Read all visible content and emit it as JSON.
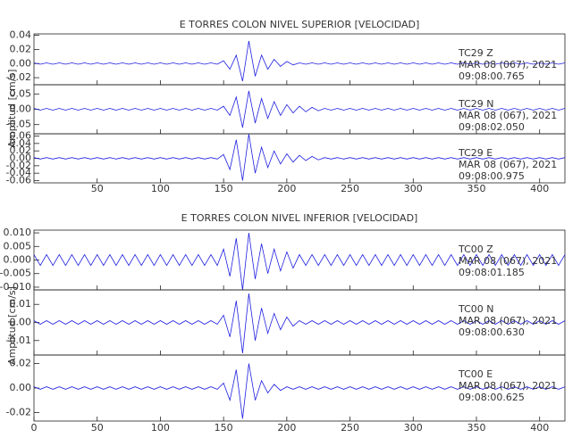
{
  "chart_data": [
    {
      "type": "line",
      "title": "E TORRES COLON NIVEL SUPERIOR [VELOCIDAD]",
      "ylabel": "Amplitud [cm/s]",
      "color": "#1f1fe0",
      "xlim": [
        0,
        420
      ],
      "xticks": [
        50,
        100,
        150,
        200,
        250,
        300,
        350,
        400
      ],
      "x": [
        0,
        5,
        10,
        15,
        20,
        25,
        30,
        35,
        40,
        45,
        50,
        55,
        60,
        65,
        70,
        75,
        80,
        85,
        90,
        95,
        100,
        105,
        110,
        115,
        120,
        125,
        130,
        135,
        140,
        145,
        150,
        155,
        160,
        165,
        170,
        175,
        180,
        185,
        190,
        195,
        200,
        205,
        210,
        215,
        220,
        225,
        230,
        235,
        240,
        245,
        250,
        255,
        260,
        265,
        270,
        275,
        280,
        285,
        290,
        295,
        300,
        305,
        310,
        315,
        320,
        325,
        330,
        335,
        340,
        345,
        350,
        355,
        360,
        365,
        370,
        375,
        380,
        385,
        390,
        395,
        400,
        405,
        410,
        415,
        420
      ],
      "panels": [
        {
          "station": "TC29   Z",
          "date": "MAR 08 (067), 2021",
          "time": "09:08:00.765",
          "ylim": [
            -0.03,
            0.042
          ],
          "yticks": [
            0.04,
            0.02,
            {
              "value": 0,
              "label": "0.00"
            },
            -0.02
          ],
          "values": [
            0.001,
            -0.001,
            0.001,
            -0.001,
            0.001,
            -0.001,
            0.001,
            -0.001,
            0.001,
            -0.001,
            0.001,
            -0.001,
            0.001,
            -0.001,
            0.001,
            -0.001,
            0.001,
            -0.001,
            0.001,
            -0.001,
            0.001,
            -0.001,
            0.001,
            -0.001,
            0.001,
            -0.001,
            0.001,
            -0.001,
            0.001,
            -0.001,
            0.004,
            -0.008,
            0.012,
            -0.025,
            0.032,
            -0.018,
            0.012,
            -0.008,
            0.006,
            -0.004,
            0.003,
            -0.002,
            0.001,
            -0.001,
            0.001,
            -0.001,
            0.001,
            -0.001,
            0.001,
            -0.001,
            0.001,
            -0.001,
            0.001,
            -0.001,
            0.001,
            -0.001,
            0.001,
            -0.001,
            0.001,
            -0.001,
            0.001,
            -0.001,
            0.001,
            -0.001,
            0.001,
            -0.001,
            0.001,
            -0.001,
            0.001,
            -0.001,
            0.001,
            -0.001,
            0.001,
            -0.001,
            0.001,
            -0.001,
            0.001,
            -0.001,
            0.001,
            -0.001,
            0.001,
            -0.001,
            0.001,
            -0.001,
            0.001
          ]
        },
        {
          "station": "TC29   N",
          "date": "MAR 08 (067), 2021",
          "time": "09:08:02.050",
          "ylim": [
            -0.08,
            0.08
          ],
          "yticks": [
            0.05,
            {
              "value": 0,
              "label": "0.00"
            },
            -0.05
          ],
          "values": [
            0.003,
            -0.003,
            0.003,
            -0.003,
            0.003,
            -0.003,
            0.003,
            -0.003,
            0.003,
            -0.003,
            0.003,
            -0.003,
            0.003,
            -0.003,
            0.003,
            -0.003,
            0.003,
            -0.003,
            0.003,
            -0.003,
            0.003,
            -0.003,
            0.003,
            -0.003,
            0.003,
            -0.003,
            0.003,
            -0.003,
            0.003,
            -0.003,
            0.01,
            -0.02,
            0.04,
            -0.06,
            0.06,
            -0.045,
            0.035,
            -0.03,
            0.025,
            -0.02,
            0.015,
            -0.012,
            0.01,
            -0.008,
            0.006,
            -0.005,
            0.003,
            -0.003,
            0.003,
            -0.003,
            0.003,
            -0.003,
            0.003,
            -0.003,
            0.003,
            -0.003,
            0.003,
            -0.003,
            0.003,
            -0.003,
            0.003,
            -0.003,
            0.003,
            -0.003,
            0.003,
            -0.003,
            0.003,
            -0.003,
            0.003,
            -0.003,
            0.003,
            -0.003,
            0.003,
            -0.003,
            0.003,
            -0.003,
            0.003,
            -0.003,
            0.003,
            -0.003,
            0.003,
            -0.003,
            0.003,
            -0.003,
            0.003
          ]
        },
        {
          "station": "TC29   E",
          "date": "MAR 08 (067), 2021",
          "time": "09:08:00.975",
          "ylim": [
            -0.066,
            0.066
          ],
          "yticks": [
            0.06,
            0.04,
            0.02,
            {
              "value": 0,
              "label": "0.00"
            },
            -0.02,
            -0.04,
            -0.06
          ],
          "values": [
            0.002,
            -0.002,
            0.002,
            -0.002,
            0.002,
            -0.002,
            0.002,
            -0.002,
            0.002,
            -0.002,
            0.002,
            -0.002,
            0.002,
            -0.002,
            0.002,
            -0.002,
            0.002,
            -0.002,
            0.002,
            -0.002,
            0.002,
            -0.002,
            0.002,
            -0.002,
            0.002,
            -0.002,
            0.002,
            -0.002,
            0.002,
            -0.002,
            0.01,
            -0.03,
            0.05,
            -0.06,
            0.065,
            -0.04,
            0.03,
            -0.025,
            0.02,
            -0.015,
            0.012,
            -0.01,
            0.008,
            -0.006,
            0.005,
            -0.004,
            0.002,
            -0.002,
            0.002,
            -0.002,
            0.002,
            -0.002,
            0.002,
            -0.002,
            0.002,
            -0.002,
            0.002,
            -0.002,
            0.002,
            -0.002,
            0.002,
            -0.002,
            0.002,
            -0.002,
            0.002,
            -0.002,
            0.002,
            -0.002,
            0.002,
            -0.002,
            0.002,
            -0.002,
            0.002,
            -0.002,
            0.002,
            -0.002,
            0.002,
            -0.002,
            0.002,
            -0.002,
            0.002,
            -0.002,
            0.002,
            -0.002,
            0.002
          ]
        }
      ]
    },
    {
      "type": "line",
      "title": "E TORRES COLON NIVEL INFERIOR [VELOCIDAD]",
      "ylabel": "Amplitud [cm/s]",
      "color": "#1f1fe0",
      "xlim": [
        0,
        420
      ],
      "xticks": [
        0,
        50,
        100,
        150,
        200,
        250,
        300,
        350,
        400
      ],
      "x": [
        0,
        5,
        10,
        15,
        20,
        25,
        30,
        35,
        40,
        45,
        50,
        55,
        60,
        65,
        70,
        75,
        80,
        85,
        90,
        95,
        100,
        105,
        110,
        115,
        120,
        125,
        130,
        135,
        140,
        145,
        150,
        155,
        160,
        165,
        170,
        175,
        180,
        185,
        190,
        195,
        200,
        205,
        210,
        215,
        220,
        225,
        230,
        235,
        240,
        245,
        250,
        255,
        260,
        265,
        270,
        275,
        280,
        285,
        290,
        295,
        300,
        305,
        310,
        315,
        320,
        325,
        330,
        335,
        340,
        345,
        350,
        355,
        360,
        365,
        370,
        375,
        380,
        385,
        390,
        395,
        400,
        405,
        410,
        415,
        420
      ],
      "panels": [
        {
          "station": "TC00   Z",
          "date": "MAR 08 (067), 2021",
          "time": "09:08:01.185",
          "ylim": [
            -0.011,
            0.011
          ],
          "yticks": [
            {
              "value": 0.01,
              "label": "0.010"
            },
            {
              "value": 0.005,
              "label": "0.005"
            },
            {
              "value": 0,
              "label": "0.000"
            },
            {
              "value": -0.005,
              "label": "-0.005"
            },
            {
              "value": -0.01,
              "label": "-0.010"
            }
          ],
          "values": [
            0.002,
            -0.002,
            0.002,
            -0.002,
            0.002,
            -0.002,
            0.002,
            -0.002,
            0.002,
            -0.002,
            0.002,
            -0.002,
            0.002,
            -0.002,
            0.002,
            -0.002,
            0.002,
            -0.002,
            0.002,
            -0.002,
            0.002,
            -0.002,
            0.002,
            -0.002,
            0.002,
            -0.002,
            0.002,
            -0.002,
            0.002,
            -0.002,
            0.004,
            -0.006,
            0.008,
            -0.011,
            0.01,
            -0.007,
            0.006,
            -0.005,
            0.004,
            -0.004,
            0.003,
            -0.003,
            0.002,
            -0.002,
            0.002,
            -0.002,
            0.002,
            -0.002,
            0.002,
            -0.002,
            0.002,
            -0.002,
            0.002,
            -0.002,
            0.002,
            -0.002,
            0.002,
            -0.002,
            0.002,
            -0.002,
            0.002,
            -0.002,
            0.002,
            -0.002,
            0.002,
            -0.002,
            0.002,
            -0.002,
            0.002,
            -0.002,
            0.002,
            -0.002,
            0.002,
            -0.002,
            0.002,
            -0.002,
            0.002,
            -0.002,
            0.002,
            -0.002,
            0.002,
            -0.002,
            0.002,
            -0.002,
            0.002
          ]
        },
        {
          "station": "TC00   N",
          "date": "MAR 08 (067), 2021",
          "time": "09:08:00.630",
          "ylim": [
            -0.018,
            0.018
          ],
          "yticks": [
            0.01,
            {
              "value": 0,
              "label": "0.00"
            },
            -0.01
          ],
          "values": [
            0.001,
            -0.001,
            0.001,
            -0.001,
            0.001,
            -0.001,
            0.001,
            -0.001,
            0.001,
            -0.001,
            0.001,
            -0.001,
            0.001,
            -0.001,
            0.001,
            -0.001,
            0.001,
            -0.001,
            0.001,
            -0.001,
            0.001,
            -0.001,
            0.001,
            -0.001,
            0.001,
            -0.001,
            0.001,
            -0.001,
            0.001,
            -0.001,
            0.004,
            -0.008,
            0.012,
            -0.017,
            0.016,
            -0.01,
            0.008,
            -0.006,
            0.005,
            -0.004,
            0.003,
            -0.002,
            0.001,
            -0.001,
            0.001,
            -0.001,
            0.001,
            -0.001,
            0.001,
            -0.001,
            0.001,
            -0.001,
            0.001,
            -0.001,
            0.001,
            -0.001,
            0.001,
            -0.001,
            0.001,
            -0.001,
            0.001,
            -0.001,
            0.001,
            -0.001,
            0.001,
            -0.001,
            0.001,
            -0.001,
            0.001,
            -0.001,
            0.001,
            -0.001,
            0.001,
            -0.001,
            0.001,
            -0.001,
            0.001,
            -0.001,
            0.001,
            -0.001,
            0.001,
            -0.001,
            0.001,
            -0.001,
            0.001
          ]
        },
        {
          "station": "TC00   E",
          "date": "MAR 08 (067), 2021",
          "time": "09:08:00.625",
          "ylim": [
            -0.027,
            0.027
          ],
          "yticks": [
            0.02,
            {
              "value": 0,
              "label": "0.00"
            },
            -0.02
          ],
          "values": [
            0.001,
            -0.001,
            0.001,
            -0.001,
            0.001,
            -0.001,
            0.001,
            -0.001,
            0.001,
            -0.001,
            0.001,
            -0.001,
            0.001,
            -0.001,
            0.001,
            -0.001,
            0.001,
            -0.001,
            0.001,
            -0.001,
            0.001,
            -0.001,
            0.001,
            -0.001,
            0.001,
            -0.001,
            0.001,
            -0.001,
            0.001,
            -0.001,
            0.004,
            -0.01,
            0.015,
            -0.025,
            0.02,
            -0.01,
            0.006,
            -0.004,
            0.003,
            -0.002,
            0.001,
            -0.001,
            0.001,
            -0.001,
            0.001,
            -0.001,
            0.001,
            -0.001,
            0.001,
            -0.001,
            0.001,
            -0.001,
            0.001,
            -0.001,
            0.001,
            -0.001,
            0.001,
            -0.001,
            0.001,
            -0.001,
            0.001,
            -0.001,
            0.001,
            -0.001,
            0.001,
            -0.001,
            0.001,
            -0.001,
            0.001,
            -0.001,
            0.001,
            -0.001,
            0.001,
            -0.001,
            0.001,
            -0.001,
            0.001,
            -0.001,
            0.001,
            -0.001,
            0.001,
            -0.001,
            0.001,
            -0.001,
            0.001
          ]
        }
      ]
    }
  ]
}
